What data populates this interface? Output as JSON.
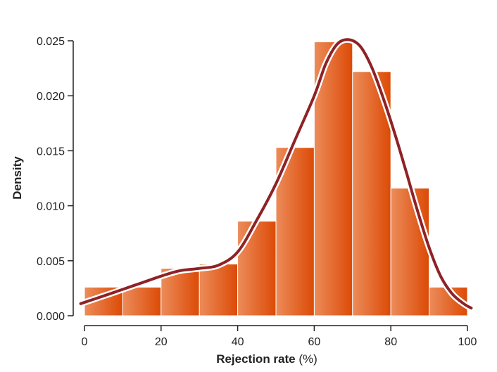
{
  "chart_data": {
    "type": "bar",
    "title": "",
    "xlabel": "Rejection rate",
    "xlabel_unit": "(%)",
    "ylabel": "Density",
    "xlim": [
      0,
      100
    ],
    "ylim": [
      0,
      0.025
    ],
    "x_ticks": [
      "0",
      "20",
      "40",
      "60",
      "80",
      "100"
    ],
    "y_ticks": [
      "0.000",
      "0.005",
      "0.010",
      "0.015",
      "0.020",
      "0.025"
    ],
    "grid": false,
    "legend": "none",
    "bins": [
      {
        "x0": 0,
        "x1": 10,
        "density": 0.0026
      },
      {
        "x0": 10,
        "x1": 20,
        "density": 0.0026
      },
      {
        "x0": 20,
        "x1": 30,
        "density": 0.0043
      },
      {
        "x0": 30,
        "x1": 40,
        "density": 0.0047
      },
      {
        "x0": 40,
        "x1": 50,
        "density": 0.0086
      },
      {
        "x0": 50,
        "x1": 60,
        "density": 0.0153
      },
      {
        "x0": 60,
        "x1": 70,
        "density": 0.0249
      },
      {
        "x0": 70,
        "x1": 80,
        "density": 0.0222
      },
      {
        "x0": 80,
        "x1": 90,
        "density": 0.0116
      },
      {
        "x0": 90,
        "x1": 100,
        "density": 0.0026
      }
    ],
    "density_curve": {
      "x": [
        -1,
        5,
        10,
        15,
        20,
        25,
        30,
        35,
        40,
        45,
        50,
        55,
        60,
        63,
        66,
        69,
        72,
        75,
        78,
        81,
        84,
        87,
        90,
        93,
        96,
        99,
        101
      ],
      "y": [
        0.0011,
        0.0018,
        0.0024,
        0.003,
        0.0036,
        0.0041,
        0.0043,
        0.0046,
        0.0058,
        0.0087,
        0.012,
        0.016,
        0.02,
        0.0229,
        0.0247,
        0.0251,
        0.0245,
        0.0226,
        0.0198,
        0.0166,
        0.0131,
        0.0095,
        0.0062,
        0.0036,
        0.002,
        0.0011,
        0.0007
      ]
    },
    "colors": {
      "bar_dark": "#dc4a06",
      "bar_light": "#ec8c5a",
      "curve": "#8e2226",
      "curve_outline": "#ffffff",
      "axis": "#222222"
    }
  }
}
